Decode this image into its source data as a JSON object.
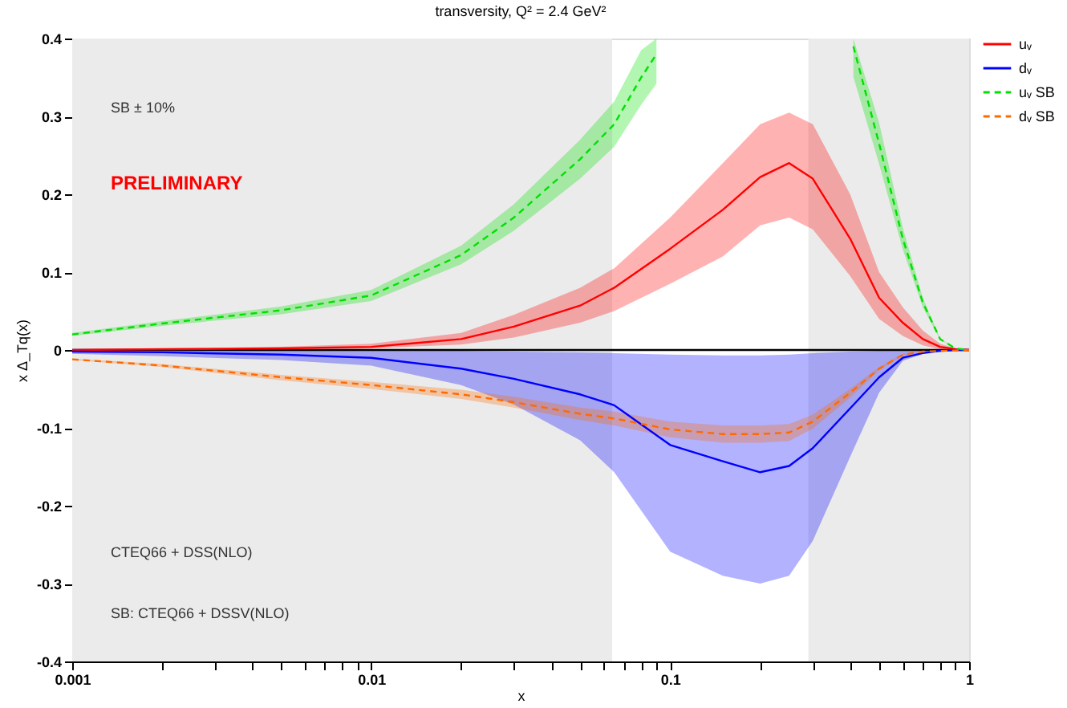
{
  "chart_data": {
    "type": "line",
    "title": "transversity, Q² = 2.4 GeV²",
    "xlabel": "x",
    "ylabel": "x Δ_Tq(x)",
    "log": "x",
    "xlim": [
      0.001,
      1
    ],
    "ylim": [
      -0.4,
      0.4
    ],
    "xticks": [
      0.001,
      {
        "value": 0.002,
        "label": null
      },
      {
        "value": 0.003,
        "label": null
      },
      {
        "value": 0.004,
        "label": null
      },
      {
        "value": 0.005,
        "label": null
      },
      {
        "value": 0.006,
        "label": null
      },
      {
        "value": 0.007,
        "label": null
      },
      {
        "value": 0.008,
        "label": null
      },
      {
        "value": 0.009,
        "label": null
      },
      0.01,
      {
        "value": 0.02,
        "label": null
      },
      {
        "value": 0.03,
        "label": null
      },
      {
        "value": 0.04,
        "label": null
      },
      {
        "value": 0.05,
        "label": null
      },
      {
        "value": 0.06,
        "label": null
      },
      {
        "value": 0.07,
        "label": null
      },
      {
        "value": 0.08,
        "label": null
      },
      {
        "value": 0.09,
        "label": null
      },
      0.1,
      {
        "value": 0.2,
        "label": null
      },
      {
        "value": 0.3,
        "label": null
      },
      {
        "value": 0.4,
        "label": null
      },
      {
        "value": 0.5,
        "label": null
      },
      {
        "value": 0.6,
        "label": null
      },
      {
        "value": 0.7,
        "label": null
      },
      {
        "value": 0.8,
        "label": null
      },
      {
        "value": 0.9,
        "label": null
      },
      1
    ],
    "yticks": [
      -0.4,
      -0.3,
      -0.2,
      -0.1,
      0,
      0.1,
      0.2,
      0.3,
      0.4
    ],
    "grid": false,
    "legend": "top right",
    "marker": "none",
    "bands": [
      {
        "axis": "x",
        "from": 0.001,
        "to": 0.064,
        "color": "#ebebeb"
      },
      {
        "axis": "x",
        "from": 0.29,
        "to": 1,
        "color": "#ebebeb"
      }
    ],
    "ref_lines": [
      {
        "axis": "y",
        "value": 0,
        "color": "#000000"
      }
    ],
    "annotations": [
      "SB ± 10%",
      "PRELIMINARY",
      "CTEQ66 + DSS(NLO)",
      "SB: CTEQ66 + DSSV(NLO)"
    ],
    "series": [
      {
        "name": "uᵥ",
        "color": "#ff0000",
        "line_style": "solid",
        "x": [
          0.001,
          0.002,
          0.005,
          0.01,
          0.02,
          0.03,
          0.05,
          0.065,
          0.1,
          0.15,
          0.2,
          0.25,
          0.3,
          0.4,
          0.5,
          0.6,
          0.7,
          0.8,
          0.9,
          1
        ],
        "values": [
          0,
          0.001,
          0.002,
          0.004,
          0.014,
          0.03,
          0.057,
          0.08,
          0.13,
          0.18,
          0.222,
          0.24,
          0.22,
          0.143,
          0.067,
          0.035,
          0.014,
          0.004,
          0.001,
          0
        ],
        "lower": [
          0,
          0,
          0.001,
          0.002,
          0.007,
          0.016,
          0.035,
          0.05,
          0.085,
          0.12,
          0.16,
          0.17,
          0.155,
          0.095,
          0.04,
          0.018,
          0.006,
          0.001,
          0,
          0
        ],
        "upper": [
          0.001,
          0.002,
          0.004,
          0.008,
          0.022,
          0.045,
          0.08,
          0.105,
          0.17,
          0.24,
          0.29,
          0.305,
          0.29,
          0.2,
          0.1,
          0.055,
          0.025,
          0.008,
          0.002,
          0
        ]
      },
      {
        "name": "dᵥ",
        "color": "#0000ff",
        "line_style": "solid",
        "x": [
          0.001,
          0.002,
          0.005,
          0.01,
          0.02,
          0.03,
          0.05,
          0.065,
          0.1,
          0.15,
          0.2,
          0.25,
          0.3,
          0.4,
          0.5,
          0.6,
          0.7,
          0.8,
          0.9,
          1
        ],
        "values": [
          -0.002,
          -0.003,
          -0.006,
          -0.01,
          -0.024,
          -0.037,
          -0.057,
          -0.071,
          -0.122,
          -0.143,
          -0.157,
          -0.149,
          -0.126,
          -0.075,
          -0.035,
          -0.01,
          -0.004,
          -0.001,
          0,
          0
        ],
        "lower": [
          -0.005,
          -0.008,
          -0.013,
          -0.02,
          -0.045,
          -0.07,
          -0.116,
          -0.157,
          -0.259,
          -0.29,
          -0.3,
          -0.29,
          -0.245,
          -0.137,
          -0.055,
          -0.014,
          -0.005,
          -0.001,
          0,
          0
        ],
        "upper": [
          0,
          0,
          0,
          0,
          -0.001,
          -0.002,
          -0.003,
          -0.004,
          -0.006,
          -0.007,
          -0.007,
          -0.006,
          -0.004,
          -0.002,
          -0.001,
          0,
          0,
          0,
          0,
          0
        ]
      },
      {
        "name": "uᵥ SB",
        "color": "#00e000",
        "line_style": "dashed",
        "x": [
          0.001,
          0.002,
          0.005,
          0.01,
          0.02,
          0.03,
          0.05,
          0.065,
          0.08,
          0.09,
          0.2,
          0.41,
          0.5,
          0.6,
          0.7,
          0.8,
          0.9,
          1
        ],
        "values": [
          0.02,
          0.034,
          0.051,
          0.07,
          0.122,
          0.17,
          0.245,
          0.29,
          0.35,
          0.38,
          null,
          0.39,
          0.265,
          0.143,
          0.061,
          0.014,
          0.002,
          0
        ],
        "lower": [
          0.018,
          0.031,
          0.046,
          0.063,
          0.11,
          0.153,
          0.22,
          0.261,
          0.315,
          0.342,
          null,
          0.351,
          0.239,
          0.129,
          0.055,
          0.013,
          0.002,
          0
        ],
        "upper": [
          0.022,
          0.037,
          0.056,
          0.077,
          0.134,
          0.187,
          0.27,
          0.319,
          0.385,
          0.4,
          null,
          0.4,
          0.292,
          0.157,
          0.067,
          0.015,
          0.002,
          0
        ]
      },
      {
        "name": "dᵥ SB",
        "color": "#ff6a00",
        "line_style": "dashed",
        "x": [
          0.001,
          0.002,
          0.005,
          0.01,
          0.02,
          0.03,
          0.05,
          0.065,
          0.1,
          0.15,
          0.2,
          0.25,
          0.3,
          0.4,
          0.5,
          0.6,
          0.7,
          1
        ],
        "values": [
          -0.012,
          -0.02,
          -0.035,
          -0.045,
          -0.057,
          -0.067,
          -0.082,
          -0.088,
          -0.102,
          -0.108,
          -0.108,
          -0.106,
          -0.092,
          -0.055,
          -0.024,
          -0.006,
          -0.002,
          0
        ],
        "lower": [
          -0.013,
          -0.022,
          -0.039,
          -0.05,
          -0.063,
          -0.074,
          -0.09,
          -0.097,
          -0.112,
          -0.119,
          -0.119,
          -0.117,
          -0.101,
          -0.061,
          -0.026,
          -0.007,
          -0.002,
          0
        ],
        "upper": [
          -0.011,
          -0.018,
          -0.032,
          -0.041,
          -0.051,
          -0.06,
          -0.074,
          -0.079,
          -0.092,
          -0.097,
          -0.097,
          -0.095,
          -0.083,
          -0.05,
          -0.022,
          -0.005,
          -0.002,
          0
        ]
      }
    ]
  }
}
